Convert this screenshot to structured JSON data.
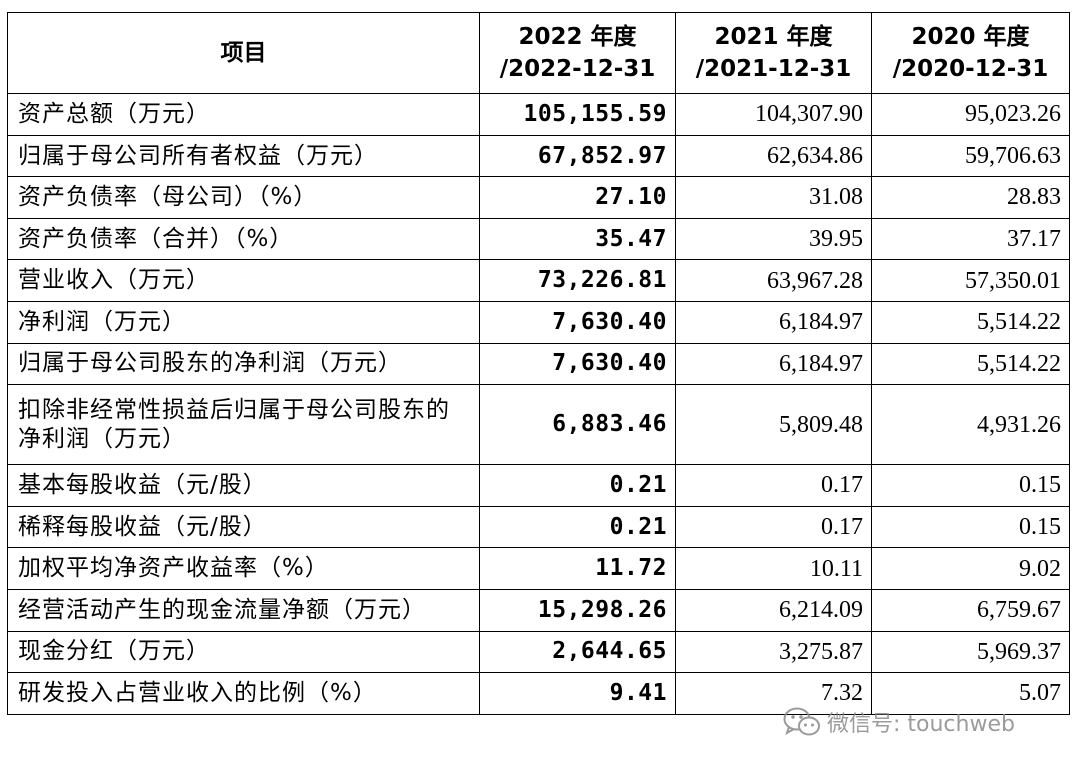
{
  "table": {
    "headers": {
      "item": "项目",
      "y2022_line1": "2022 年度",
      "y2022_line2": "/2022-12-31",
      "y2021_line1": "2021 年度",
      "y2021_line2": "/2021-12-31",
      "y2020_line1": "2020 年度",
      "y2020_line2": "/2020-12-31"
    },
    "rows": [
      {
        "label": "资产总额（万元）",
        "v2022": "105,155.59",
        "v2021": "104,307.90",
        "v2020": "95,023.26"
      },
      {
        "label": "归属于母公司所有者权益（万元）",
        "v2022": "67,852.97",
        "v2021": "62,634.86",
        "v2020": "59,706.63"
      },
      {
        "label": "资产负债率（母公司）（%）",
        "v2022": "27.10",
        "v2021": "31.08",
        "v2020": "28.83"
      },
      {
        "label": "资产负债率（合并）（%）",
        "v2022": "35.47",
        "v2021": "39.95",
        "v2020": "37.17"
      },
      {
        "label": "营业收入（万元）",
        "v2022": "73,226.81",
        "v2021": "63,967.28",
        "v2020": "57,350.01"
      },
      {
        "label": "净利润（万元）",
        "v2022": "7,630.40",
        "v2021": "6,184.97",
        "v2020": "5,514.22"
      },
      {
        "label": "归属于母公司股东的净利润（万元）",
        "v2022": "7,630.40",
        "v2021": "6,184.97",
        "v2020": "5,514.22"
      },
      {
        "label": "扣除非经常性损益后归属于母公司股东的净利润（万元）",
        "v2022": "6,883.46",
        "v2021": "5,809.48",
        "v2020": "4,931.26"
      },
      {
        "label": "基本每股收益（元/股）",
        "v2022": "0.21",
        "v2021": "0.17",
        "v2020": "0.15"
      },
      {
        "label": "稀释每股收益（元/股）",
        "v2022": "0.21",
        "v2021": "0.17",
        "v2020": "0.15"
      },
      {
        "label": "加权平均净资产收益率（%）",
        "v2022": "11.72",
        "v2021": "10.11",
        "v2020": "9.02"
      },
      {
        "label": "经营活动产生的现金流量净额（万元）",
        "v2022": "15,298.26",
        "v2021": "6,214.09",
        "v2020": "6,759.67"
      },
      {
        "label": "现金分红（万元）",
        "v2022": "2,644.65",
        "v2021": "3,275.87",
        "v2020": "5,969.37"
      },
      {
        "label": "研发投入占营业收入的比例（%）",
        "v2022": "9.41",
        "v2021": "7.32",
        "v2020": "5.07"
      }
    ]
  },
  "watermark": {
    "icon": "wechat-icon",
    "text": "微信号: touchweb"
  }
}
